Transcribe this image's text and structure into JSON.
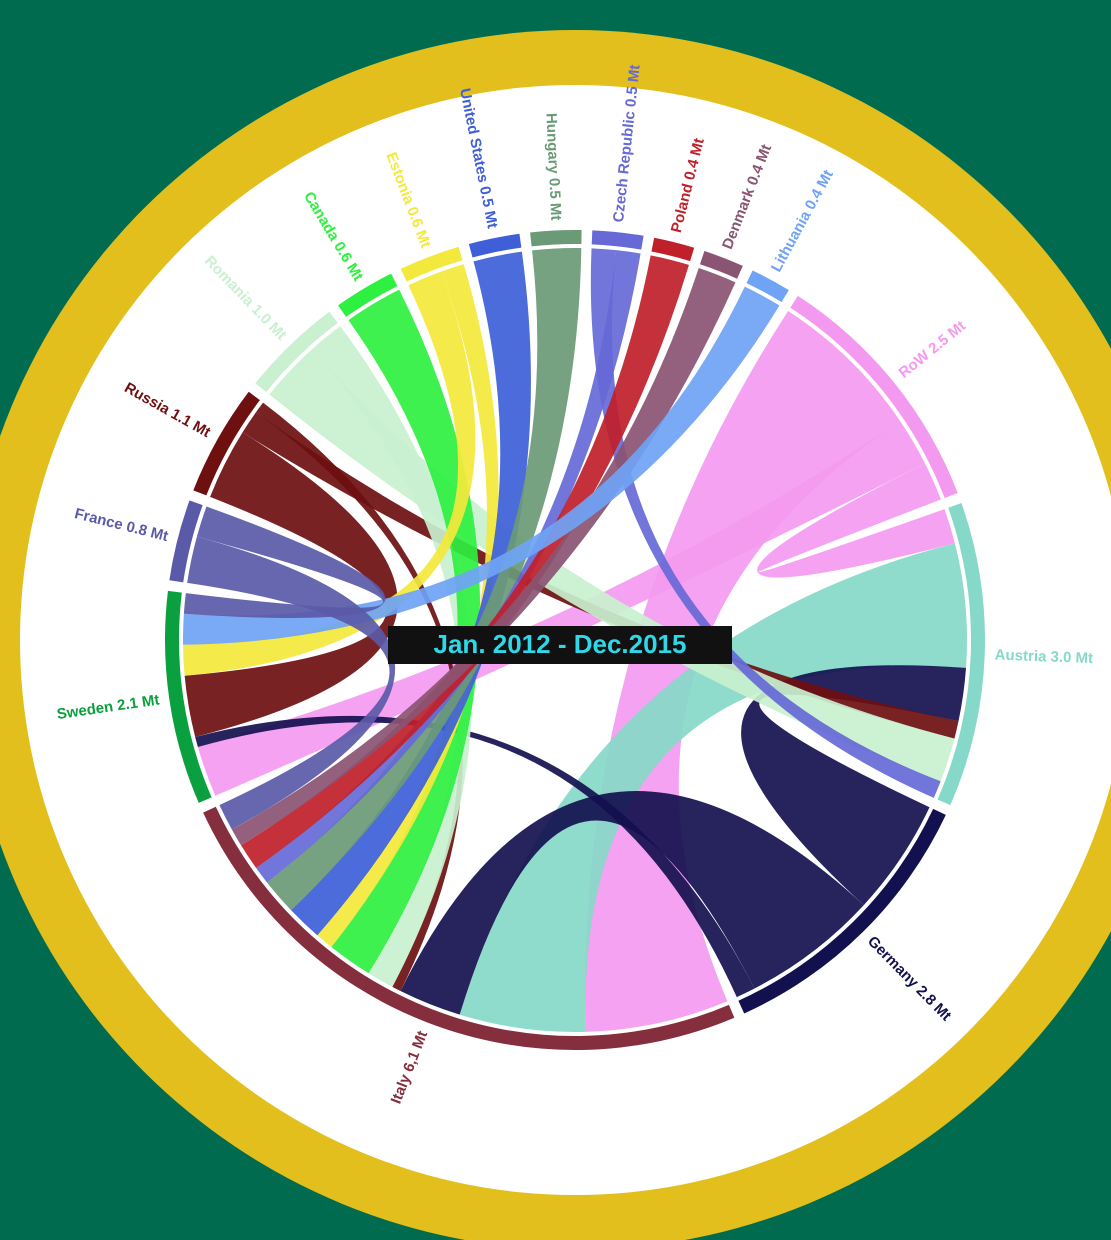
{
  "chart_data": {
    "type": "chord",
    "title": "Jan. 2012 - Dec.2015",
    "categories": [
      "United States 0.5 Mt",
      "Hungary 0.5 Mt",
      "Czech Republic 0.5 Mt",
      "Poland 0.4 Mt",
      "Denmark 0.4 Mt",
      "Lithuania 0.4 Mt",
      "RoW 2.5 Mt",
      "Austria 3.0 Mt",
      "Germany 2.8 Mt",
      "Italy 6,1 Mt",
      "Sweden 2.1 Mt",
      "France 0.8 Mt",
      "Russia 1.1 Mt",
      "Romania 1.0 Mt",
      "Canada 0.6 Mt",
      "Estonia 0.6 Mt"
    ],
    "values": [
      0.5,
      0.5,
      0.5,
      0.4,
      0.4,
      0.4,
      2.5,
      3.0,
      2.8,
      6.1,
      2.1,
      0.8,
      1.1,
      1.0,
      0.6,
      0.6
    ],
    "colors": [
      "#3e5fd8",
      "#6a9a76",
      "#6669d6",
      "#c0202a",
      "#8a5472",
      "#6fa3f5",
      "#f39af0",
      "#86d9c8",
      "#13104f",
      "#852e3d",
      "#0aa040",
      "#5a5aa8",
      "#6e0f10",
      "#c9f0cf",
      "#2ef040",
      "#f3e93c"
    ],
    "flows": [
      {
        "source": "RoW 2.5 Mt",
        "target": "Italy 6,1 Mt",
        "value": 1.6
      },
      {
        "source": "RoW 2.5 Mt",
        "target": "Sweden 2.1 Mt",
        "value": 0.5
      },
      {
        "source": "RoW 2.5 Mt",
        "target": "Austria 3.0 Mt",
        "value": 0.4
      },
      {
        "source": "Austria 3.0 Mt",
        "target": "Italy 6,1 Mt",
        "value": 1.4
      },
      {
        "source": "Germany 2.8 Mt",
        "target": "Austria 3.0 Mt",
        "value": 0.6
      },
      {
        "source": "Germany 2.8 Mt",
        "target": "Italy 6,1 Mt",
        "value": 0.7
      },
      {
        "source": "Germany 2.8 Mt",
        "target": "Sweden 2.1 Mt",
        "value": 0.1
      },
      {
        "source": "Russia 1.1 Mt",
        "target": "Sweden 2.1 Mt",
        "value": 0.6
      },
      {
        "source": "Russia 1.1 Mt",
        "target": "Austria 3.0 Mt",
        "value": 0.2
      },
      {
        "source": "Russia 1.1 Mt",
        "target": "Italy 6,1 Mt",
        "value": 0.1
      },
      {
        "source": "Romania 1.0 Mt",
        "target": "Austria 3.0 Mt",
        "value": 0.5
      },
      {
        "source": "Romania 1.0 Mt",
        "target": "Italy 6,1 Mt",
        "value": 0.3
      },
      {
        "source": "Canada 0.6 Mt",
        "target": "Italy 6,1 Mt",
        "value": 0.5
      },
      {
        "source": "Estonia 0.6 Mt",
        "target": "Sweden 2.1 Mt",
        "value": 0.3
      },
      {
        "source": "Estonia 0.6 Mt",
        "target": "Italy 6,1 Mt",
        "value": 0.2
      },
      {
        "source": "United States 0.5 Mt",
        "target": "Italy 6,1 Mt",
        "value": 0.4
      },
      {
        "source": "Hungary 0.5 Mt",
        "target": "Italy 6,1 Mt",
        "value": 0.4
      },
      {
        "source": "Czech Republic 0.5 Mt",
        "target": "Austria 3.0 Mt",
        "value": 0.2
      },
      {
        "source": "Czech Republic 0.5 Mt",
        "target": "Italy 6,1 Mt",
        "value": 0.2
      },
      {
        "source": "Poland 0.4 Mt",
        "target": "Italy 6,1 Mt",
        "value": 0.3
      },
      {
        "source": "Denmark 0.4 Mt",
        "target": "Italy 6,1 Mt",
        "value": 0.2
      },
      {
        "source": "Lithuania 0.4 Mt",
        "target": "Sweden 2.1 Mt",
        "value": 0.3
      },
      {
        "source": "France 0.8 Mt",
        "target": "Italy 6,1 Mt",
        "value": 0.3
      },
      {
        "source": "France 0.8 Mt",
        "target": "Sweden 2.1 Mt",
        "value": 0.2
      }
    ]
  }
}
